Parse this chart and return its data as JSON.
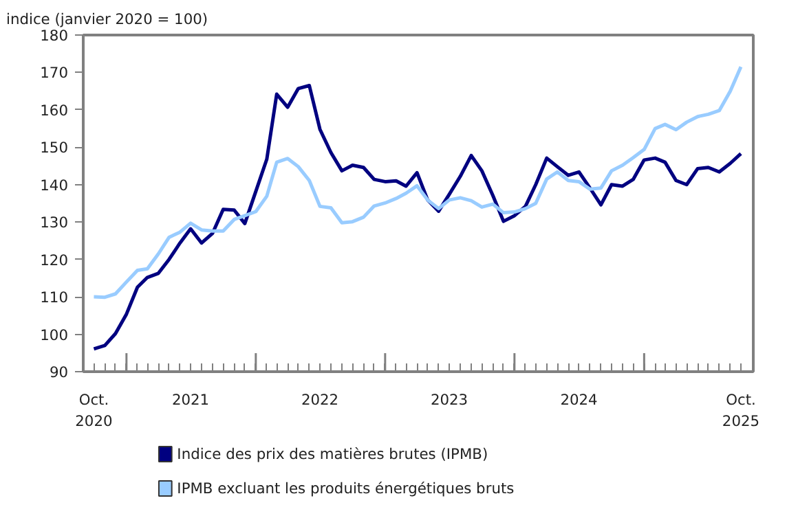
{
  "chart_data": {
    "type": "line",
    "ylabel": "indice (janvier 2020 = 100)",
    "x": [
      "2020-10",
      "2020-11",
      "2020-12",
      "2021-01",
      "2021-02",
      "2021-03",
      "2021-04",
      "2021-05",
      "2021-06",
      "2021-07",
      "2021-08",
      "2021-09",
      "2021-10",
      "2021-11",
      "2021-12",
      "2022-01",
      "2022-02",
      "2022-03",
      "2022-04",
      "2022-05",
      "2022-06",
      "2022-07",
      "2022-08",
      "2022-09",
      "2022-10",
      "2022-11",
      "2022-12",
      "2023-01",
      "2023-02",
      "2023-03",
      "2023-04",
      "2023-05",
      "2023-06",
      "2023-07",
      "2023-08",
      "2023-09",
      "2023-10",
      "2023-11",
      "2023-12",
      "2024-01",
      "2024-02",
      "2024-03",
      "2024-04",
      "2024-05",
      "2024-06",
      "2024-07",
      "2024-08",
      "2024-09",
      "2024-10",
      "2024-11",
      "2024-12",
      "2025-01",
      "2025-02",
      "2025-03",
      "2025-04",
      "2025-05",
      "2025-06",
      "2025-07",
      "2025-08",
      "2025-09",
      "2025-10"
    ],
    "series": [
      {
        "name": "Indice des prix des matières brutes (IPMB)",
        "color": "#000080",
        "values": [
          96.1,
          97.0,
          100.2,
          105.4,
          112.6,
          115.2,
          116.3,
          120.0,
          124.4,
          128.2,
          124.4,
          127.0,
          133.4,
          133.2,
          129.6,
          138.2,
          146.8,
          164.2,
          160.7,
          165.7,
          166.5,
          154.8,
          148.6,
          143.7,
          145.2,
          144.6,
          141.4,
          140.8,
          141.0,
          139.6,
          143.2,
          135.9,
          132.9,
          137.4,
          142.2,
          147.8,
          143.7,
          137.1,
          130.2,
          131.7,
          134.2,
          140.0,
          147.1,
          144.8,
          142.5,
          143.4,
          139.1,
          134.6,
          140.0,
          139.6,
          141.4,
          146.6,
          147.1,
          146.0,
          141.1,
          140.0,
          144.3,
          144.6,
          143.4,
          145.7,
          148.3
        ]
      },
      {
        "name": "IPMB excluant les produits énergétiques bruts",
        "color": "#99ccff",
        "values": [
          110.0,
          109.9,
          110.8,
          114.0,
          117.1,
          117.5,
          121.5,
          125.9,
          127.3,
          129.7,
          127.9,
          127.6,
          127.6,
          130.7,
          131.7,
          132.8,
          136.9,
          146.0,
          147.0,
          144.8,
          141.1,
          134.2,
          133.8,
          129.8,
          130.1,
          131.3,
          134.3,
          135.1,
          136.3,
          137.7,
          139.7,
          135.9,
          133.6,
          135.9,
          136.5,
          135.7,
          134.0,
          134.8,
          132.5,
          132.7,
          133.6,
          135.0,
          141.5,
          143.4,
          141.1,
          140.8,
          138.8,
          139.1,
          143.7,
          145.2,
          147.2,
          149.4,
          155.0,
          156.1,
          154.7,
          156.7,
          158.2,
          158.8,
          159.8,
          165.0,
          171.5
        ]
      }
    ],
    "xlim": [
      "2020-09-01",
      "2025-11-05"
    ],
    "xticks": [
      {
        "value": "2020-10",
        "label": "Oct.\n2020"
      },
      {
        "value": "2021-01",
        "label": null
      },
      {
        "value": "2021-07",
        "label": "2021"
      },
      {
        "value": "2022-01",
        "label": null
      },
      {
        "value": "2022-07",
        "label": "2022"
      },
      {
        "value": "2023-01",
        "label": null
      },
      {
        "value": "2023-07",
        "label": "2023"
      },
      {
        "value": "2024-01",
        "label": null
      },
      {
        "value": "2024-07",
        "label": "2024"
      },
      {
        "value": "2025-01",
        "label": null
      },
      {
        "value": "2025-10",
        "label": "Oct.\n2025"
      }
    ],
    "ylim": [
      90,
      180
    ],
    "yticks": [
      90,
      100,
      110,
      120,
      130,
      140,
      150,
      160,
      170,
      180
    ],
    "grid": false,
    "legend": "bottom",
    "line_style": "solid"
  }
}
